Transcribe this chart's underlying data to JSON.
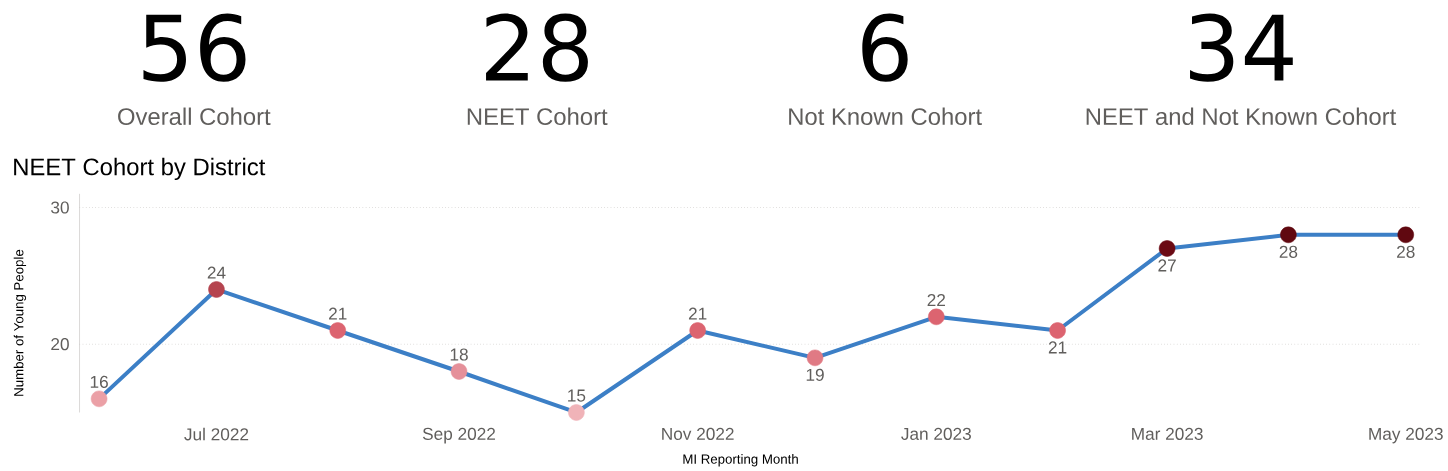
{
  "chart_data": [
    {
      "type": "other",
      "annotations": [
        "56",
        "Overall Cohort",
        "28",
        "NEET Cohort",
        "6",
        "Not Known Cohort",
        "34",
        "NEET and Not Known Cohort"
      ]
    },
    {
      "type": "line",
      "title": "NEET Cohort by District",
      "xlabel": "MI Reporting Month",
      "ylabel": "Number of Young People",
      "x": [
        "2022-06",
        "2022-07",
        "2022-08",
        "2022-09",
        "2022-10",
        "2022-11",
        "2022-12",
        "2023-01",
        "2023-02",
        "2023-03",
        "2023-04",
        "2023-05"
      ],
      "series": [
        {
          "color": "#3c7fc6",
          "colors": [
            "#eba0a6",
            "#b5444f",
            "#dc6470",
            "#e5909a",
            "#f0b3b8",
            "#dc6470",
            "#e07a84",
            "#dc6470",
            "#dc6470",
            "#6b0a14",
            "#600810",
            "#600810"
          ],
          "values": [
            16,
            24,
            21,
            18,
            15,
            21,
            19,
            22,
            21,
            27,
            28,
            28
          ]
        }
      ],
      "xlim": [
        "2022-05-27",
        "2023-05-05"
      ],
      "ylim": [
        15,
        31
      ],
      "xticks": [
        {
          "value": "2022-07",
          "label": "Jul 2022"
        },
        {
          "value": "2022-09",
          "label": "Sep 2022"
        },
        {
          "value": "2022-11",
          "label": "Nov 2022"
        },
        {
          "value": "2023-01",
          "label": "Jan 2023"
        },
        {
          "value": "2023-03",
          "label": "Mar 2023"
        },
        {
          "value": "2023-05",
          "label": "May 2023"
        }
      ],
      "yticks": [
        20,
        30
      ],
      "grid": "y",
      "marker": "circle",
      "line_style": "solid",
      "data_labels": true
    }
  ]
}
